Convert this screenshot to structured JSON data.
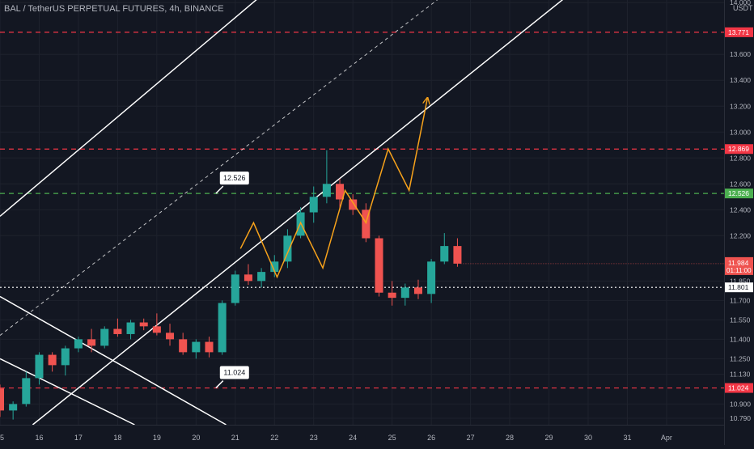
{
  "header": {
    "title": "BAL / TetherUS PERPETUAL FUTURES, 4h, BINANCE",
    "currency": "USDT"
  },
  "colors": {
    "background": "#131722",
    "grid": "#1e222d",
    "bull": "#26a69a",
    "bear": "#ef5350",
    "resistance": "#f23645",
    "support_green": "#4caf50",
    "channel": "#ffffff",
    "projection": "#f7a21b"
  },
  "chart_data": {
    "type": "candlestick",
    "timeframe": "4h",
    "ylim": [
      10.74,
      14.02
    ],
    "xlim_bars": [
      0,
      55.4
    ],
    "y_ticks": [
      "14.000",
      "13.771",
      "13.600",
      "13.400",
      "13.200",
      "13.000",
      "12.800",
      "12.600",
      "12.526",
      "12.400",
      "12.200",
      "11.984",
      "11.850",
      "11.801",
      "11.700",
      "11.550",
      "11.400",
      "11.250",
      "11.130",
      "11.024",
      "10.900",
      "10.790"
    ],
    "x_ticks": [
      {
        "bar": 0,
        "label": "15"
      },
      {
        "bar": 3,
        "label": "16"
      },
      {
        "bar": 6,
        "label": "17"
      },
      {
        "bar": 9,
        "label": "18"
      },
      {
        "bar": 12,
        "label": "19"
      },
      {
        "bar": 15,
        "label": "20"
      },
      {
        "bar": 18,
        "label": "21"
      },
      {
        "bar": 21,
        "label": "22"
      },
      {
        "bar": 24,
        "label": "23"
      },
      {
        "bar": 27,
        "label": "24"
      },
      {
        "bar": 30,
        "label": "25"
      },
      {
        "bar": 33,
        "label": "26"
      },
      {
        "bar": 36,
        "label": "27"
      },
      {
        "bar": 39,
        "label": "28"
      },
      {
        "bar": 42,
        "label": "29"
      },
      {
        "bar": 45,
        "label": "30"
      },
      {
        "bar": 48,
        "label": "31"
      },
      {
        "bar": 51,
        "label": "Apr"
      }
    ],
    "candles": [
      {
        "o": 11.02,
        "h": 11.05,
        "l": 10.8,
        "c": 10.85
      },
      {
        "o": 10.85,
        "h": 10.92,
        "l": 10.78,
        "c": 10.9
      },
      {
        "o": 10.9,
        "h": 11.15,
        "l": 10.88,
        "c": 11.1
      },
      {
        "o": 11.1,
        "h": 11.3,
        "l": 11.05,
        "c": 11.28
      },
      {
        "o": 11.28,
        "h": 11.3,
        "l": 11.15,
        "c": 11.2
      },
      {
        "o": 11.2,
        "h": 11.35,
        "l": 11.12,
        "c": 11.33
      },
      {
        "o": 11.33,
        "h": 11.42,
        "l": 11.3,
        "c": 11.4
      },
      {
        "o": 11.4,
        "h": 11.48,
        "l": 11.3,
        "c": 11.35
      },
      {
        "o": 11.35,
        "h": 11.5,
        "l": 11.33,
        "c": 11.48
      },
      {
        "o": 11.48,
        "h": 11.56,
        "l": 11.42,
        "c": 11.44
      },
      {
        "o": 11.44,
        "h": 11.55,
        "l": 11.4,
        "c": 11.53
      },
      {
        "o": 11.53,
        "h": 11.56,
        "l": 11.47,
        "c": 11.5
      },
      {
        "o": 11.5,
        "h": 11.6,
        "l": 11.43,
        "c": 11.45
      },
      {
        "o": 11.45,
        "h": 11.52,
        "l": 11.35,
        "c": 11.4
      },
      {
        "o": 11.4,
        "h": 11.45,
        "l": 11.28,
        "c": 11.3
      },
      {
        "o": 11.3,
        "h": 11.4,
        "l": 11.25,
        "c": 11.38
      },
      {
        "o": 11.38,
        "h": 11.42,
        "l": 11.26,
        "c": 11.3
      },
      {
        "o": 11.3,
        "h": 11.7,
        "l": 11.28,
        "c": 11.68
      },
      {
        "o": 11.68,
        "h": 11.93,
        "l": 11.66,
        "c": 11.9
      },
      {
        "o": 11.9,
        "h": 11.98,
        "l": 11.82,
        "c": 11.85
      },
      {
        "o": 11.85,
        "h": 11.95,
        "l": 11.8,
        "c": 11.92
      },
      {
        "o": 11.92,
        "h": 12.05,
        "l": 11.88,
        "c": 12.0
      },
      {
        "o": 12.0,
        "h": 12.25,
        "l": 11.95,
        "c": 12.2
      },
      {
        "o": 12.2,
        "h": 12.42,
        "l": 12.18,
        "c": 12.38
      },
      {
        "o": 12.38,
        "h": 12.58,
        "l": 12.3,
        "c": 12.5
      },
      {
        "o": 12.5,
        "h": 12.86,
        "l": 12.45,
        "c": 12.6
      },
      {
        "o": 12.6,
        "h": 12.64,
        "l": 12.4,
        "c": 12.48
      },
      {
        "o": 12.48,
        "h": 12.52,
        "l": 12.36,
        "c": 12.4
      },
      {
        "o": 12.4,
        "h": 12.45,
        "l": 12.15,
        "c": 12.18
      },
      {
        "o": 12.18,
        "h": 12.2,
        "l": 11.73,
        "c": 11.76
      },
      {
        "o": 11.76,
        "h": 11.85,
        "l": 11.66,
        "c": 11.72
      },
      {
        "o": 11.72,
        "h": 11.83,
        "l": 11.66,
        "c": 11.8
      },
      {
        "o": 11.8,
        "h": 11.86,
        "l": 11.71,
        "c": 11.75
      },
      {
        "o": 11.75,
        "h": 12.02,
        "l": 11.68,
        "c": 12.0
      },
      {
        "o": 12.0,
        "h": 12.22,
        "l": 11.98,
        "c": 12.12
      },
      {
        "o": 12.12,
        "h": 12.18,
        "l": 11.96,
        "c": 11.984
      }
    ],
    "horizontal_levels": [
      {
        "price": 13.771,
        "label": "13.771",
        "kind": "resistance",
        "dash": "dashed"
      },
      {
        "price": 12.869,
        "label": "12.869",
        "kind": "resistance",
        "dash": "dashed"
      },
      {
        "price": 12.526,
        "label": "12.526",
        "kind": "support_green",
        "dash": "dashed"
      },
      {
        "price": 11.801,
        "label": "11.801",
        "kind": "neutral",
        "dash": "dotted"
      },
      {
        "price": 11.024,
        "label": "11.024",
        "kind": "resistance",
        "dash": "dashed"
      }
    ],
    "current_price": {
      "price": 11.984,
      "label": "11.984",
      "countdown": "01:11:00"
    },
    "trend_lines": [
      {
        "name": "channel-upper",
        "style": "solid",
        "points": [
          [
            0,
            12.35
          ],
          [
            21,
            14.14
          ]
        ]
      },
      {
        "name": "channel-mid",
        "style": "dashed",
        "points": [
          [
            0,
            11.43
          ],
          [
            35,
            14.14
          ]
        ]
      },
      {
        "name": "channel-lower",
        "style": "solid",
        "points": [
          [
            2.5,
            10.74
          ],
          [
            44.5,
            14.14
          ]
        ]
      },
      {
        "name": "down-line-1",
        "style": "solid",
        "points": [
          [
            0,
            11.73
          ],
          [
            17.3,
            10.74
          ]
        ]
      },
      {
        "name": "down-line-2",
        "style": "solid",
        "points": [
          [
            0,
            11.25
          ],
          [
            10.3,
            10.74
          ]
        ]
      }
    ],
    "projection_path": [
      [
        18.4,
        12.1
      ],
      [
        19.4,
        12.3
      ],
      [
        21.2,
        11.88
      ],
      [
        23.0,
        12.3
      ],
      [
        24.7,
        11.95
      ],
      [
        26.4,
        12.55
      ],
      [
        28.0,
        12.3
      ],
      [
        29.7,
        12.87
      ],
      [
        31.3,
        12.55
      ],
      [
        32.7,
        13.26
      ]
    ],
    "annotations": [
      {
        "text": "12.526",
        "price": 12.526,
        "bar": 16.7
      },
      {
        "text": "11.024",
        "price": 11.024,
        "bar": 16.7
      }
    ]
  }
}
